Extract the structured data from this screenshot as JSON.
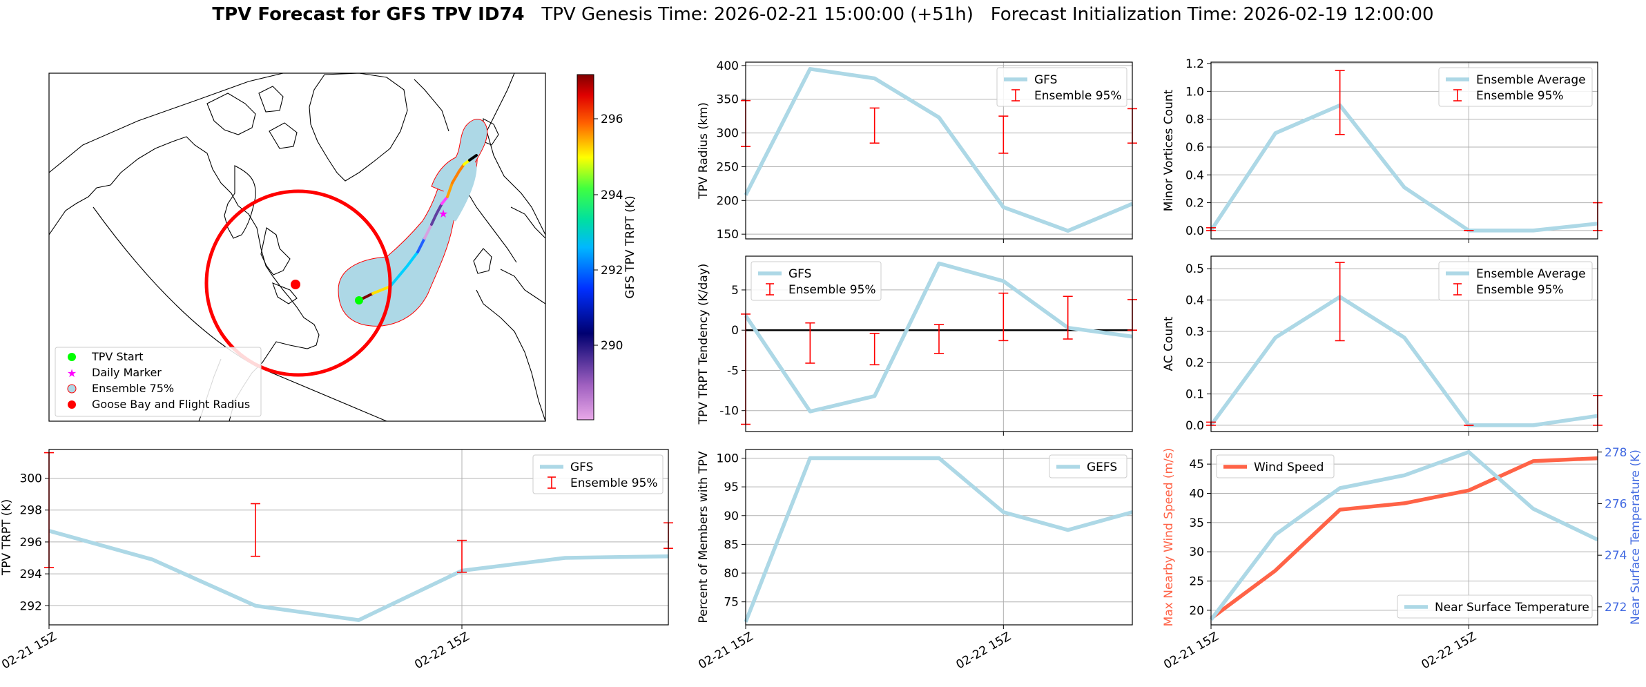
{
  "figure": {
    "title_bold": "TPV Forecast for GFS TPV ID74",
    "title_rest": "   TPV Genesis Time: 2026-02-21 15:00:00 (+51h)   Forecast Initialization Time: 2026-02-19 12:00:00"
  },
  "colors": {
    "series": "#add8e6",
    "errorbar": "#ff0000",
    "wind": "#ff6347",
    "temp_axis": "#4169e1",
    "grid": "#b0b0b0"
  },
  "map": {
    "colorbar_label": "GFS TPV TRPT (K)",
    "colorbar_ticks": [
      "296",
      "294",
      "292",
      "290"
    ],
    "legend": [
      {
        "label": "TPV Start",
        "icon": "green-dot-icon"
      },
      {
        "label": "Daily Marker",
        "icon": "magenta-star-icon"
      },
      {
        "label": "Ensemble 75%",
        "icon": "circle-patch-icon"
      },
      {
        "label": "Goose Bay and Flight Radius",
        "icon": "red-dot-icon"
      }
    ]
  },
  "chart_data": [
    {
      "id": "radius",
      "type": "line",
      "ylabel": "TPV Radius (km)",
      "yticks": [
        "150",
        "200",
        "250",
        "300",
        "350",
        "400"
      ],
      "ylim": [
        143,
        405
      ],
      "x": [
        0,
        1,
        2,
        3,
        4,
        5,
        6
      ],
      "xlim": [
        0,
        6
      ],
      "series": [
        {
          "name": "GFS",
          "values": [
            208,
            395,
            381,
            323,
            190,
            155,
            195
          ]
        }
      ],
      "errorbars": {
        "name": "Ensemble 95%",
        "x": [
          0,
          2,
          4,
          6
        ],
        "low": [
          280,
          285,
          270,
          285
        ],
        "high": [
          348,
          337,
          325,
          336
        ]
      },
      "legend_labels": [
        "GFS",
        "Ensemble 95%"
      ],
      "legend": "top-right"
    },
    {
      "id": "minor",
      "type": "line",
      "ylabel": "Minor Vortices Count",
      "yticks": [
        "0.0",
        "0.2",
        "0.4",
        "0.6",
        "0.8",
        "1.0",
        "1.2"
      ],
      "ylim": [
        -0.06,
        1.21
      ],
      "x": [
        0,
        1,
        2,
        3,
        4,
        5,
        6
      ],
      "xlim": [
        0,
        6
      ],
      "series": [
        {
          "name": "Ensemble Average",
          "values": [
            0.0,
            0.7,
            0.9,
            0.31,
            0.0,
            0.0,
            0.05
          ]
        }
      ],
      "errorbars": {
        "name": "Ensemble 95%",
        "x": [
          0,
          2,
          4,
          6
        ],
        "low": [
          0,
          0.69,
          0,
          0
        ],
        "high": [
          0.02,
          1.15,
          0,
          0.2
        ]
      },
      "legend_labels": [
        "Ensemble Average",
        "Ensemble 95%"
      ],
      "legend": "top-right"
    },
    {
      "id": "tendency",
      "type": "line",
      "ylabel": "TPV TRPT Tendency (K/day)",
      "yticks": [
        "-10",
        "-5",
        "0",
        "5"
      ],
      "ylim": [
        -12.6,
        9.2
      ],
      "zero_line": true,
      "x": [
        0,
        1,
        2,
        3,
        4,
        5,
        6
      ],
      "xlim": [
        0,
        6
      ],
      "series": [
        {
          "name": "GFS",
          "values": [
            1.8,
            -10.1,
            -8.2,
            8.3,
            6.1,
            0.3,
            -0.8
          ]
        }
      ],
      "errorbars": {
        "name": "Ensemble 95%",
        "x": [
          0,
          1,
          2,
          3,
          4,
          5,
          6
        ],
        "low": [
          -11.7,
          -4.1,
          -4.3,
          -2.9,
          -1.3,
          -1.1,
          0
        ],
        "high": [
          2.0,
          0.9,
          -0.4,
          0.7,
          4.6,
          4.2,
          3.8
        ]
      },
      "legend_labels": [
        "GFS",
        "Ensemble 95%"
      ],
      "legend": "top-left"
    },
    {
      "id": "ac",
      "type": "line",
      "ylabel": "AC Count",
      "yticks": [
        "0.0",
        "0.1",
        "0.2",
        "0.3",
        "0.4",
        "0.5"
      ],
      "ylim": [
        -0.02,
        0.54
      ],
      "x": [
        0,
        1,
        2,
        3,
        4,
        5,
        6
      ],
      "xlim": [
        0,
        6
      ],
      "series": [
        {
          "name": "Ensemble Average",
          "values": [
            0.0,
            0.28,
            0.41,
            0.28,
            0.0,
            0.0,
            0.03
          ]
        }
      ],
      "errorbars": {
        "name": "Ensemble 95%",
        "x": [
          0,
          2,
          4,
          6
        ],
        "low": [
          0,
          0.27,
          0,
          0
        ],
        "high": [
          0.01,
          0.52,
          0,
          0.095
        ]
      },
      "legend_labels": [
        "Ensemble Average",
        "Ensemble 95%"
      ],
      "legend": "top-right"
    },
    {
      "id": "trpt",
      "type": "line",
      "ylabel": "TPV TRPT (K)",
      "yticks": [
        "292",
        "294",
        "296",
        "298",
        "300"
      ],
      "ylim": [
        290.8,
        301.8
      ],
      "x": [
        0,
        0.25,
        0.5,
        0.75,
        1.0,
        1.25,
        1.5
      ],
      "xlim": [
        0,
        1.5
      ],
      "xticks": [
        {
          "x": 0,
          "label": "02-21 15Z"
        },
        {
          "x": 1.0,
          "label": "02-22 15Z"
        }
      ],
      "series": [
        {
          "name": "GFS",
          "values": [
            296.7,
            294.9,
            292.0,
            291.1,
            294.2,
            295.0,
            295.1
          ]
        }
      ],
      "errorbars": {
        "name": "Ensemble 95%",
        "x": [
          0,
          0.5,
          1.0,
          1.5
        ],
        "low": [
          294.4,
          295.1,
          294.1,
          295.6
        ],
        "high": [
          301.6,
          298.4,
          296.1,
          297.2
        ]
      },
      "legend_labels": [
        "GFS",
        "Ensemble 95%"
      ],
      "legend": "top-right"
    },
    {
      "id": "members",
      "type": "line",
      "ylabel": "Percent of Members with TPV",
      "yticks": [
        "75",
        "80",
        "85",
        "90",
        "95",
        "100"
      ],
      "ylim": [
        71,
        101.5
      ],
      "x": [
        0,
        1,
        2,
        3,
        4,
        5,
        6
      ],
      "xlim": [
        0,
        6
      ],
      "xticks": [
        {
          "x": 0,
          "label": "02-21 15Z"
        },
        {
          "x": 4,
          "label": "02-22 15Z"
        }
      ],
      "series": [
        {
          "name": "GEFS",
          "values": [
            71.5,
            100,
            100,
            100,
            90.6,
            87.5,
            90.6
          ]
        }
      ],
      "legend_labels": [
        "GEFS"
      ],
      "legend": "top-right"
    },
    {
      "id": "wind",
      "type": "line",
      "ylabel": "Max Nearby Wind Speed (m/s)",
      "ylabel2": "Near Surface Temperature (K)",
      "yticks": [
        "20",
        "25",
        "30",
        "35",
        "40",
        "45"
      ],
      "ylim": [
        17.5,
        47.5
      ],
      "yticks2": [
        "272",
        "274",
        "276",
        "278"
      ],
      "ylim2": [
        271.3,
        278.1
      ],
      "x": [
        0,
        1,
        2,
        3,
        4,
        5,
        6
      ],
      "xlim": [
        0,
        6
      ],
      "xticks": [
        {
          "x": 0,
          "label": "02-21 15Z"
        },
        {
          "x": 4,
          "label": "02-22 15Z"
        }
      ],
      "series": [
        {
          "name": "Wind Speed",
          "values": [
            18.6,
            26.8,
            37.2,
            38.3,
            40.5,
            45.5,
            46.0
          ],
          "axis": "left"
        },
        {
          "name": "Near Surface Temperature",
          "values": [
            271.5,
            274.8,
            276.6,
            277.1,
            278.0,
            275.8,
            274.6
          ],
          "axis": "right"
        }
      ],
      "legend_labels": [
        "Wind Speed",
        "Near Surface Temperature"
      ],
      "legend": "top-left / bottom-right"
    }
  ]
}
